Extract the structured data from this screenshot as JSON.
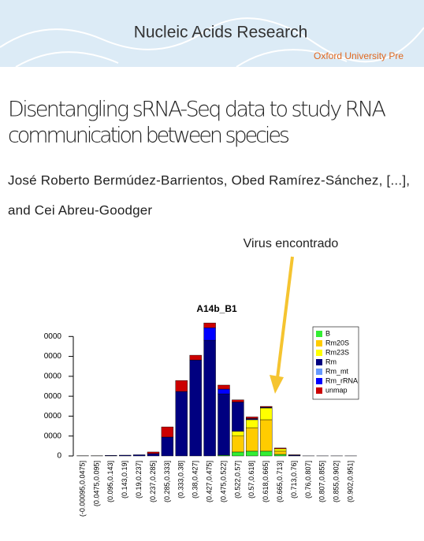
{
  "header": {
    "journal": "Nucleic Acids Research",
    "publisher": "Oxford University Pre"
  },
  "article": {
    "title_line1": "Disentangling sRNA-Seq data to study RNA",
    "title_line2": "communication between species",
    "authors_line1": "José Roberto Bermúdez-Barrientos, Obed Ramírez-Sánchez, [...],",
    "authors_line2": "and Cei Abreu-Goodger"
  },
  "chart_data": {
    "type": "stacked_bar",
    "title": "A14b_B1",
    "annotation": "Virus encontrado",
    "categories": [
      "(-0.00095,0.0475]",
      "(0.0475,0.095]",
      "(0.095,0.143]",
      "(0.143,0.19]",
      "(0.19,0.237]",
      "(0.237,0.285]",
      "(0.285,0.333]",
      "(0.333,0.38]",
      "(0.38,0.427]",
      "(0.427,0.475]",
      "(0.475,0.522]",
      "(0.522,0.57]",
      "(0.57,0.618]",
      "(0.618,0.665]",
      "(0.665,0.713]",
      "(0.713,0.76]",
      "(0.76,0.807]",
      "(0.807,0.855]",
      "(0.855,0.902]",
      "(0.902,0.951]"
    ],
    "series": [
      {
        "name": "B",
        "color": "#33ee33",
        "values": [
          0,
          0,
          0,
          0,
          0,
          0,
          0,
          0,
          0,
          0,
          400,
          2000,
          2400,
          2400,
          800,
          0,
          0,
          0,
          0,
          0
        ]
      },
      {
        "name": "Rm20S",
        "color": "#ffcc00",
        "values": [
          0,
          0,
          0,
          0,
          0,
          0,
          0,
          0,
          0,
          0,
          0,
          8000,
          11800,
          15800,
          1600,
          0,
          0,
          0,
          0,
          0
        ]
      },
      {
        "name": "Rm23S",
        "color": "#ffff00",
        "values": [
          0,
          0,
          0,
          0,
          0,
          0,
          0,
          0,
          0,
          0,
          0,
          2400,
          4000,
          5900,
          1200,
          0,
          0,
          0,
          0,
          0
        ]
      },
      {
        "name": "Rm",
        "color": "#000080",
        "values": [
          100,
          100,
          300,
          400,
          600,
          1200,
          9500,
          32400,
          48200,
          58100,
          30800,
          14700,
          600,
          400,
          0,
          400,
          50,
          50,
          50,
          50
        ]
      },
      {
        "name": "Rm_mt",
        "color": "#6699ff",
        "values": [
          0,
          0,
          0,
          0,
          0,
          0,
          0,
          0,
          0,
          0,
          0,
          0,
          0,
          0,
          0,
          0,
          0,
          0,
          0,
          0
        ]
      },
      {
        "name": "Rm_rRNA",
        "color": "#0000ff",
        "values": [
          0,
          0,
          0,
          0,
          0,
          0,
          0,
          0,
          0,
          6300,
          2400,
          0,
          0,
          0,
          0,
          0,
          0,
          0,
          0,
          0
        ]
      },
      {
        "name": "unmap",
        "color": "#cc0000",
        "values": [
          0,
          0,
          0,
          0,
          0,
          800,
          5100,
          5500,
          2400,
          2400,
          2000,
          1100,
          800,
          400,
          400,
          200,
          0,
          0,
          0,
          0
        ]
      }
    ],
    "ylim": [
      0,
      70000
    ],
    "yticks": [
      0,
      {
        "value": 10000,
        "label": "0000"
      },
      {
        "value": 20000,
        "label": "0000"
      },
      {
        "value": 30000,
        "label": "0000"
      },
      {
        "value": 40000,
        "label": "0000"
      },
      {
        "value": 50000,
        "label": "0000"
      },
      {
        "value": 60000,
        "label": "0000"
      }
    ],
    "grid": false,
    "legend": "upper right"
  }
}
